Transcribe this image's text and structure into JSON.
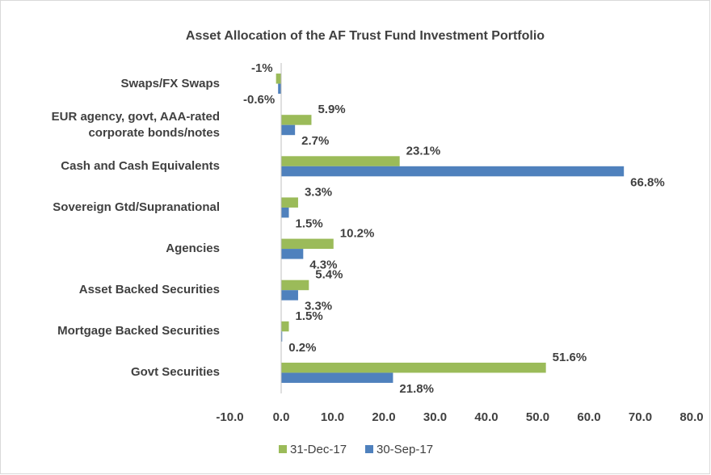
{
  "chart_data": {
    "type": "bar",
    "orientation": "horizontal",
    "title": "Asset Allocation of the AF Trust Fund Investment Portfolio",
    "categories": [
      "Swaps/FX Swaps",
      "EUR agency, govt, AAA-rated corporate bonds/notes",
      "Cash and Cash Equivalents",
      "Sovereign Gtd/Supranational",
      "Agencies",
      "Asset Backed Securities",
      "Mortgage Backed Securities",
      "Govt Securities"
    ],
    "series": [
      {
        "name": "31-Dec-17",
        "color": "#9bbb59",
        "values": [
          -1,
          5.9,
          23.1,
          3.3,
          10.2,
          5.4,
          1.5,
          51.6
        ],
        "value_labels": [
          "-1%",
          "5.9%",
          "23.1%",
          "3.3%",
          "10.2%",
          "5.4%",
          "1.5%",
          "51.6%"
        ]
      },
      {
        "name": "30-Sep-17",
        "color": "#4f81bd",
        "values": [
          -0.6,
          2.7,
          66.8,
          1.5,
          4.3,
          3.3,
          0.2,
          21.8
        ],
        "value_labels": [
          "-0.6%",
          "2.7%",
          "66.8%",
          "1.5%",
          "4.3%",
          "3.3%",
          "0.2%",
          "21.8%"
        ]
      }
    ],
    "xlim": [
      -10,
      80
    ],
    "xticks": [
      {
        "value": -10,
        "label": "-10.0"
      },
      {
        "value": 0,
        "label": "0.0"
      },
      {
        "value": 10,
        "label": "10.0"
      },
      {
        "value": 20,
        "label": "20.0"
      },
      {
        "value": 30,
        "label": "30.0"
      },
      {
        "value": 40,
        "label": "40.0"
      },
      {
        "value": 50,
        "label": "50.0"
      },
      {
        "value": 60,
        "label": "60.0"
      },
      {
        "value": 70,
        "label": "70.0"
      },
      {
        "value": 80,
        "label": "80.0"
      }
    ],
    "grid": false,
    "legend": "bottom"
  }
}
